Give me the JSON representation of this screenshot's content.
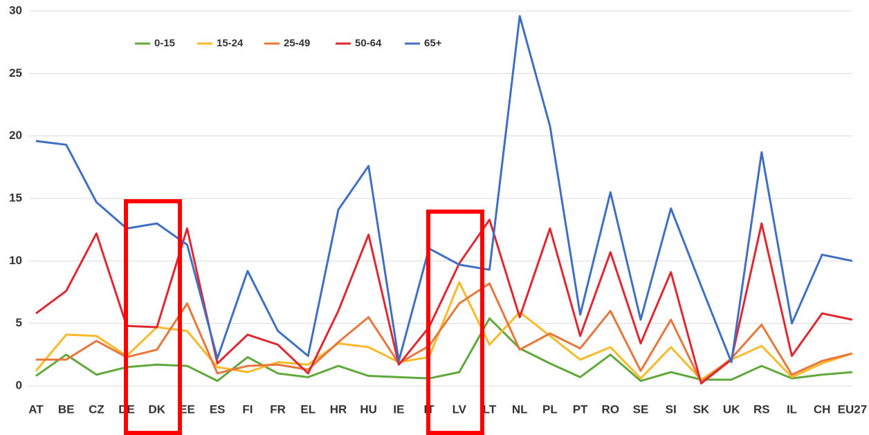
{
  "chart_data": {
    "type": "line",
    "categories": [
      "AT",
      "BE",
      "CZ",
      "DE",
      "DK",
      "EE",
      "ES",
      "FI",
      "FR",
      "EL",
      "HR",
      "HU",
      "IE",
      "IT",
      "LV",
      "LT",
      "NL",
      "PL",
      "PT",
      "RO",
      "SE",
      "SI",
      "SK",
      "UK",
      "RS",
      "IL",
      "CH",
      "EU27"
    ],
    "series": [
      {
        "name": "0-15",
        "color": "#5fa83a",
        "values": [
          0.8,
          2.5,
          0.9,
          1.5,
          1.7,
          1.6,
          0.4,
          2.3,
          1.0,
          0.7,
          1.6,
          0.8,
          0.7,
          0.6,
          1.1,
          5.4,
          3.0,
          1.8,
          0.7,
          2.5,
          0.4,
          1.1,
          0.5,
          0.5,
          1.6,
          0.6,
          0.9,
          1.1
        ]
      },
      {
        "name": "15-24",
        "color": "#fbb928",
        "values": [
          1.2,
          4.1,
          4.0,
          2.4,
          4.7,
          4.4,
          1.5,
          1.1,
          1.9,
          1.7,
          3.4,
          3.1,
          1.9,
          2.3,
          8.3,
          3.3,
          5.9,
          4.0,
          2.1,
          3.1,
          0.6,
          3.1,
          0.5,
          2.1,
          3.2,
          0.7,
          1.8,
          2.6
        ]
      },
      {
        "name": "25-49",
        "color": "#e8763a",
        "values": [
          2.1,
          2.1,
          3.6,
          2.3,
          2.9,
          6.6,
          1.0,
          1.6,
          1.7,
          1.3,
          3.5,
          5.5,
          1.8,
          3.2,
          6.6,
          8.2,
          2.9,
          4.2,
          3.0,
          6.0,
          1.2,
          5.3,
          0.3,
          2.2,
          4.9,
          0.9,
          2.0,
          2.6
        ]
      },
      {
        "name": "50-64",
        "color": "#e0262e",
        "values": [
          5.8,
          7.6,
          12.2,
          4.8,
          4.7,
          12.6,
          1.8,
          4.1,
          3.3,
          1.0,
          6.0,
          12.1,
          1.7,
          4.7,
          9.8,
          13.3,
          5.5,
          12.6,
          4.0,
          10.7,
          3.4,
          9.1,
          0.2,
          2.1,
          13.0,
          2.4,
          5.8,
          5.3
        ]
      },
      {
        "name": "65+",
        "color": "#3f6fc4",
        "values": [
          19.6,
          19.3,
          14.7,
          12.6,
          13.0,
          11.3,
          2.2,
          9.2,
          4.4,
          2.4,
          14.1,
          17.6,
          2.0,
          11.0,
          9.7,
          9.3,
          29.6,
          20.8,
          5.7,
          15.5,
          5.3,
          14.2,
          8.0,
          1.9,
          18.7,
          5.0,
          10.5,
          10.0
        ]
      }
    ],
    "ylim": [
      0,
      30
    ],
    "yticks": [
      0,
      5,
      10,
      15,
      20,
      25,
      30
    ],
    "grid": true,
    "legend": "top"
  }
}
